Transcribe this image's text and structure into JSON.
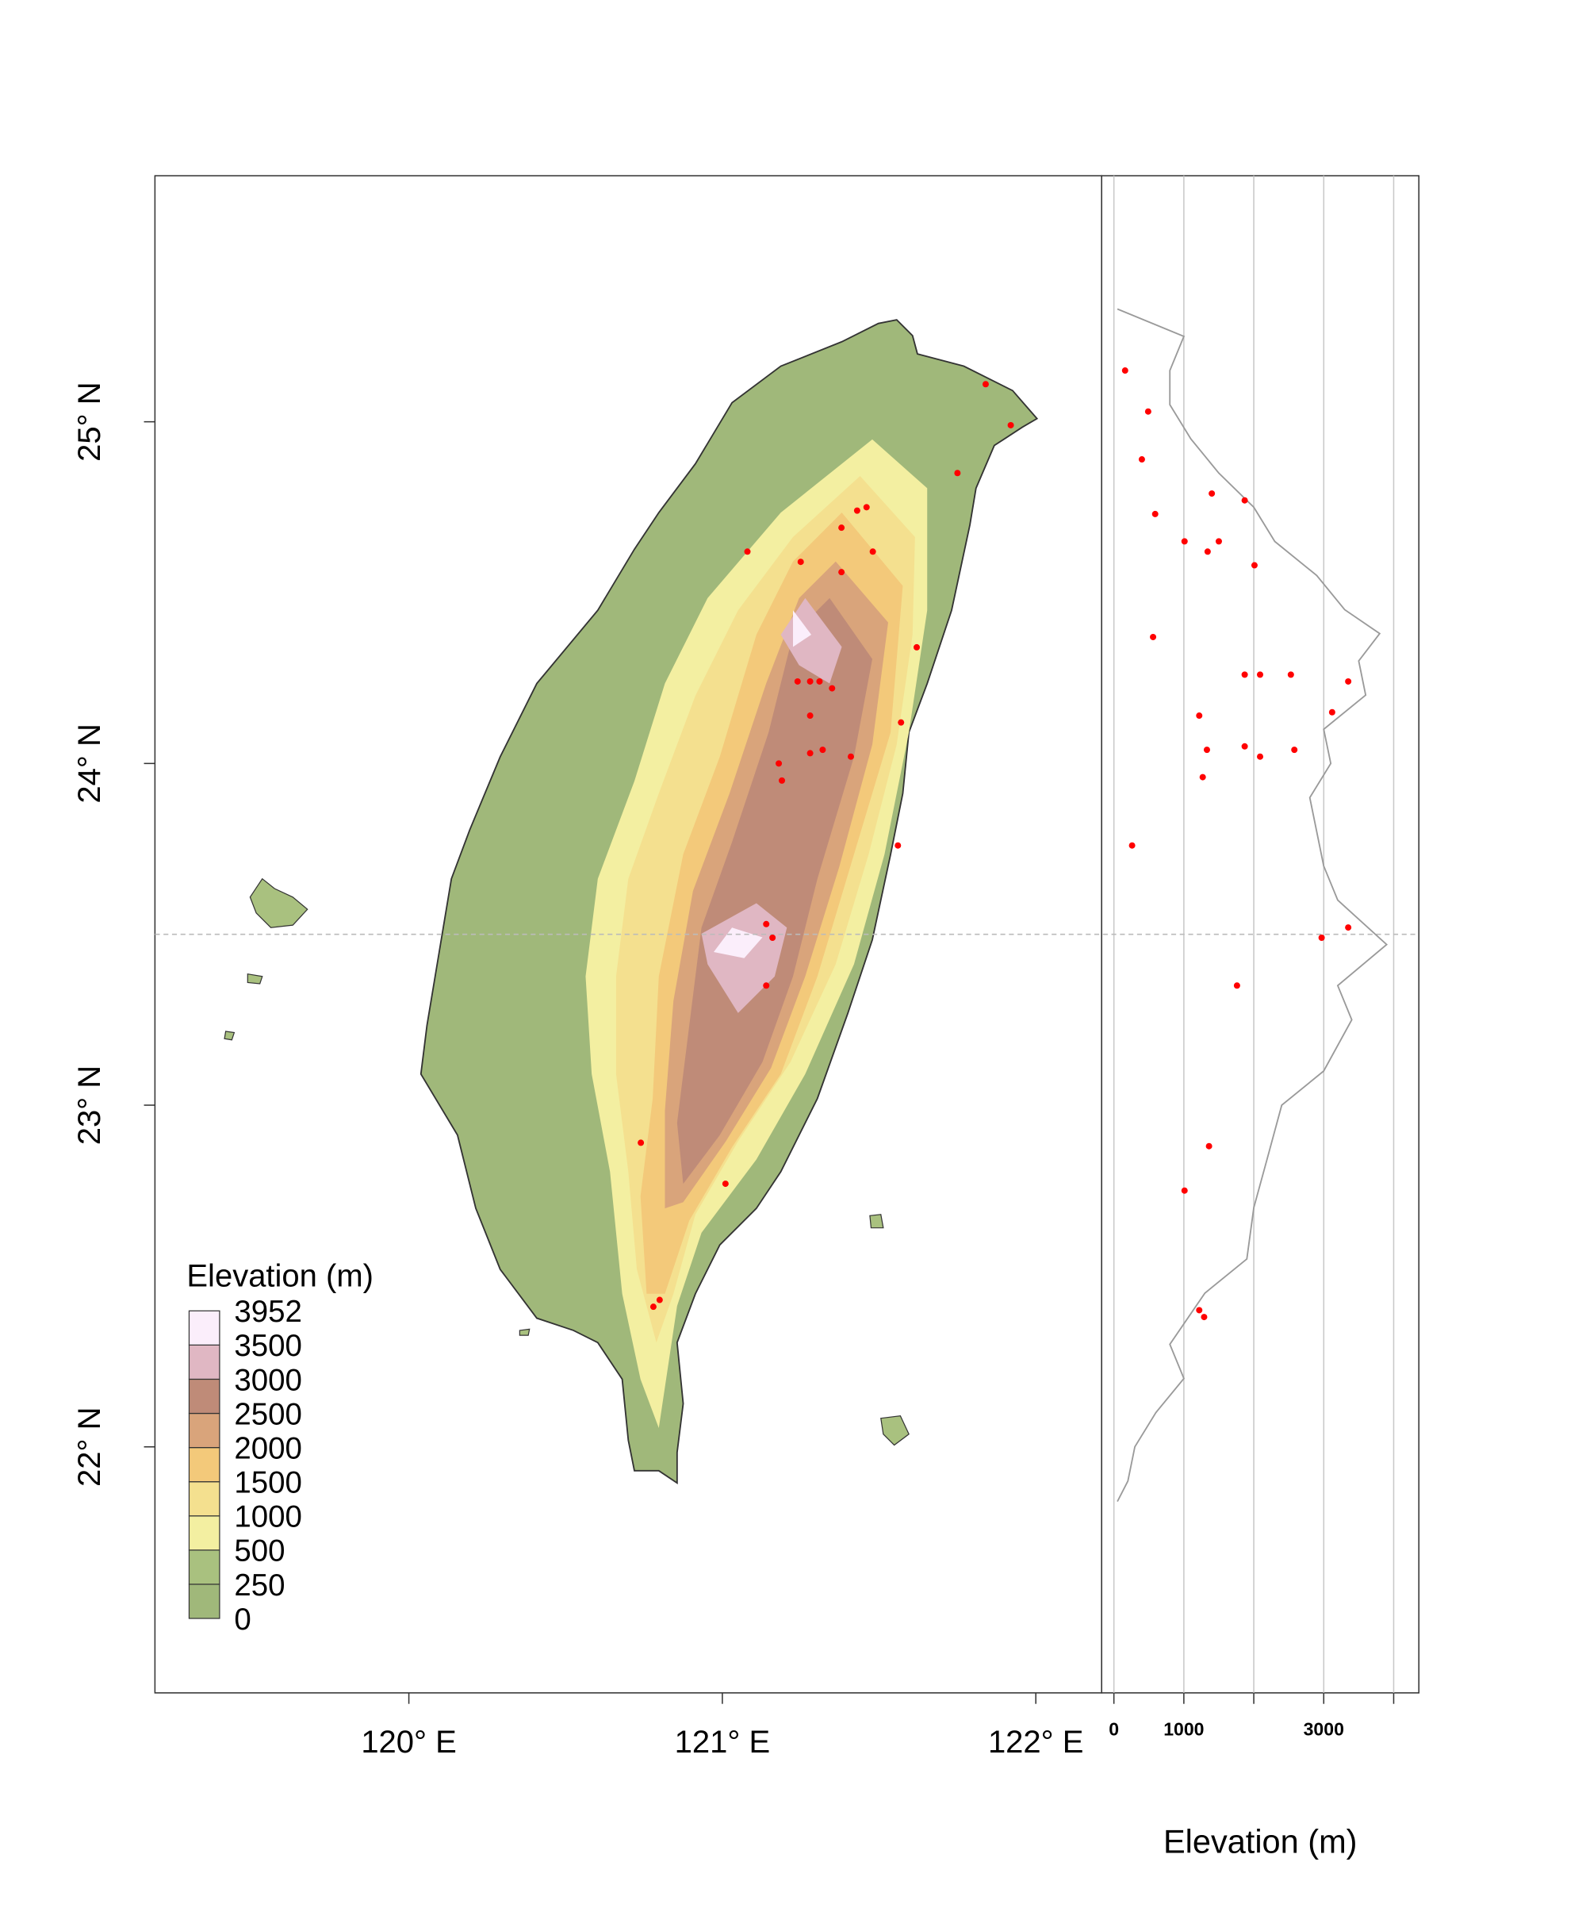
{
  "map": {
    "xlim": [
      119.19,
      122.21
    ],
    "ylim": [
      21.28,
      25.72
    ],
    "xticks": [
      {
        "value": 120,
        "label": "120° E"
      },
      {
        "value": 121,
        "label": "121° E"
      },
      {
        "value": 122,
        "label": "122° E"
      }
    ],
    "yticks": [
      {
        "value": 22,
        "label": "22° N"
      },
      {
        "value": 23,
        "label": "23° N"
      },
      {
        "value": 24,
        "label": "24° N"
      },
      {
        "value": 25,
        "label": "25° N"
      }
    ],
    "reference_lat": 23.5,
    "sites": {
      "color": "#ff0000",
      "lon": [
        121.84,
        121.92,
        121.75,
        121.46,
        121.43,
        121.38,
        121.08,
        121.48,
        121.25,
        121.38,
        121.62,
        121.24,
        121.28,
        121.31,
        121.35,
        121.28,
        121.57,
        121.18,
        121.32,
        121.28,
        121.41,
        121.19,
        121.56,
        121.14,
        121.16,
        121.14,
        120.74,
        121.01,
        120.8,
        120.78
      ],
      "lat": [
        25.11,
        24.99,
        24.85,
        24.75,
        24.74,
        24.69,
        24.62,
        24.62,
        24.59,
        24.56,
        24.34,
        24.24,
        24.24,
        24.24,
        24.22,
        24.14,
        24.12,
        24.0,
        24.04,
        24.03,
        24.02,
        23.95,
        23.76,
        23.53,
        23.49,
        23.35,
        22.89,
        22.77,
        22.43,
        22.41
      ]
    },
    "legend": {
      "title": "Elevation (m)",
      "breaks": [
        0,
        250,
        500,
        1000,
        1500,
        2000,
        2500,
        3000,
        3500,
        3952
      ],
      "colors": [
        "#a0b87a",
        "#a9c17f",
        "#f3efa1",
        "#f4e08f",
        "#f3c97a",
        "#d9a47b",
        "#bf8b78",
        "#e0b7c3",
        "#fbeefb"
      ]
    }
  },
  "profile": {
    "xlim": [
      -175,
      4360
    ],
    "xticks": [
      0,
      1000,
      {
        "value": 2000,
        "label": null
      },
      3000,
      {
        "value": 4000,
        "label": null
      }
    ],
    "xlabel": "Elevation (m)",
    "max_elevation": {
      "color": "#9a9a9a",
      "lat": [
        25.33,
        25.25,
        25.15,
        25.05,
        24.95,
        24.85,
        24.75,
        24.65,
        24.55,
        24.45,
        24.38,
        24.3,
        24.2,
        24.1,
        24.0,
        23.9,
        23.8,
        23.7,
        23.6,
        23.47,
        23.35,
        23.25,
        23.1,
        23.0,
        22.85,
        22.7,
        22.55,
        22.45,
        22.3,
        22.2,
        22.1,
        22.0,
        21.9,
        21.84
      ],
      "elevation": [
        50,
        1000,
        800,
        800,
        1100,
        1500,
        2000,
        2300,
        2900,
        3300,
        3800,
        3500,
        3600,
        3000,
        3100,
        2800,
        2900,
        3000,
        3200,
        3900,
        3200,
        3400,
        3000,
        2400,
        2200,
        2000,
        1900,
        1300,
        800,
        1000,
        600,
        300,
        200,
        50
      ]
    },
    "sites": {
      "color": "#ff0000",
      "lat": [
        25.15,
        25.03,
        24.89,
        24.79,
        24.77,
        24.73,
        24.65,
        24.65,
        24.62,
        24.58,
        24.37,
        24.26,
        24.26,
        24.26,
        24.24,
        24.15,
        24.14,
        24.05,
        24.04,
        24.04,
        24.02,
        23.96,
        23.76,
        23.52,
        23.49,
        23.35,
        22.88,
        22.75,
        22.4,
        22.38
      ],
      "elevation": [
        160,
        490,
        400,
        1400,
        1870,
        590,
        1010,
        1500,
        1340,
        2010,
        560,
        1870,
        2090,
        2530,
        3350,
        3120,
        1220,
        1870,
        1330,
        2580,
        2090,
        1270,
        260,
        3350,
        2970,
        1760,
        1360,
        1010,
        1220,
        1290
      ]
    }
  }
}
